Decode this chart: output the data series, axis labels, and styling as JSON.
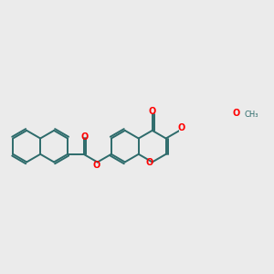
{
  "background_color": "#ebebeb",
  "bond_color": "#2d6b6b",
  "oxygen_color": "#ff0000",
  "line_width": 1.4,
  "figsize": [
    3.0,
    3.0
  ],
  "dpi": 100,
  "xlim": [
    0.0,
    9.5
  ],
  "ylim": [
    -1.5,
    3.5
  ]
}
